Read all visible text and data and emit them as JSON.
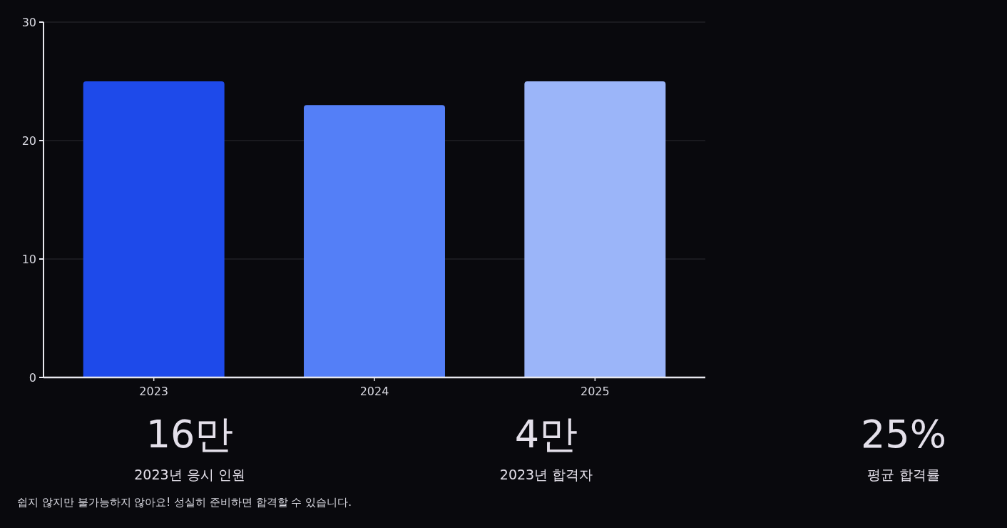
{
  "chart_data": [
    {
      "type": "bar",
      "categories": [
        "2023",
        "2024",
        "2025"
      ],
      "values": [
        25,
        23,
        25
      ],
      "colors": [
        "#1e4aea",
        "#547ff7",
        "#9bb5f9"
      ],
      "ylim": [
        0,
        30
      ],
      "yticks": [
        0,
        10,
        20,
        30
      ],
      "grid": "y"
    },
    {
      "type": "other",
      "annotations": [
        "16만",
        "2023년 응시 인원",
        "4만",
        "2023년 합격자",
        "25%",
        "평균 합격률",
        "쉽지 않지만 불가능하지 않아요! 성실히 준비하면 합격할 수 있습니다."
      ]
    }
  ]
}
